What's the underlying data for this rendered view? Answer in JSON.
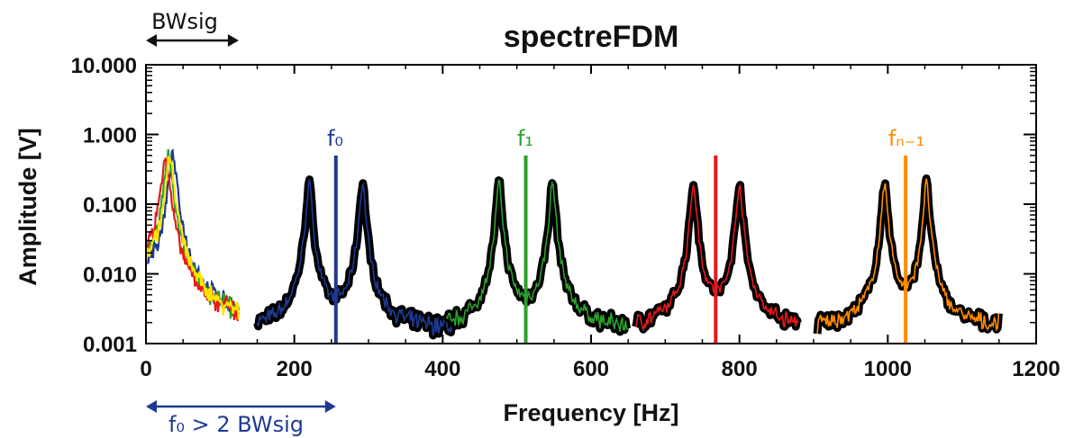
{
  "chart_data": {
    "type": "line",
    "title": "spectreFDM",
    "xlabel": "Frequency [Hz]",
    "ylabel": "Amplitude [V]",
    "xlim": [
      0,
      1200
    ],
    "ylim": [
      0.001,
      10
    ],
    "yscale": "log",
    "x_ticks": [
      0,
      200,
      400,
      600,
      800,
      1000,
      1200
    ],
    "x_tick_labels": [
      "0",
      "200",
      "400",
      "600",
      "800",
      "1000",
      "1200"
    ],
    "y_ticks": [
      0.001,
      0.01,
      0.1,
      1,
      10
    ],
    "y_tick_labels": [
      "0.001",
      "0.010",
      "0.100",
      "1.000",
      "10.000"
    ],
    "grid": false,
    "series": [
      {
        "color": "#1f3a93",
        "carrier": 256,
        "sidebands": [
          220,
          292
        ],
        "sideband_peak": 0.2,
        "carrier_peak": 0.5,
        "range": [
          150,
          420
        ],
        "baseband_peak_x": 36
      },
      {
        "color": "#2ca02c",
        "carrier": 512,
        "sidebands": [
          476,
          548
        ],
        "sideband_peak": 0.2,
        "carrier_peak": 0.5,
        "range": [
          405,
          650
        ],
        "baseband_peak_x": 30
      },
      {
        "color": "#e41a1c",
        "carrier": 768,
        "sidebands": [
          738,
          800
        ],
        "sideband_peak": 0.2,
        "carrier_peak": 0.5,
        "range": [
          660,
          880
        ],
        "baseband_peak_x": 26
      },
      {
        "color": "#ff8c00",
        "carrier": 1024,
        "sidebands": [
          996,
          1052
        ],
        "sideband_peak": 0.2,
        "carrier_peak": 0.5,
        "range": [
          905,
          1150
        ],
        "baseband_peak_x": 32
      }
    ],
    "baseband": {
      "colors": [
        "#1f3a93",
        "#2ca02c",
        "#e41a1c",
        "#ffe600"
      ],
      "peak": 0.5,
      "range": [
        0,
        125
      ]
    },
    "annotations": [
      {
        "text": "f₀",
        "x": 256,
        "color": "#1f3a93"
      },
      {
        "text": "f₁",
        "x": 512,
        "color": "#2ca02c"
      },
      {
        "text": "fₙ₋₁",
        "x": 1024,
        "color": "#ff8c00"
      }
    ],
    "top_arrow": {
      "label": "BWsig",
      "x_range": [
        0,
        125
      ],
      "color": "#111111"
    },
    "bottom_arrow": {
      "label": "f₀ > 2 BWsig",
      "x_range": [
        0,
        256
      ],
      "color": "#1f3a93"
    }
  }
}
